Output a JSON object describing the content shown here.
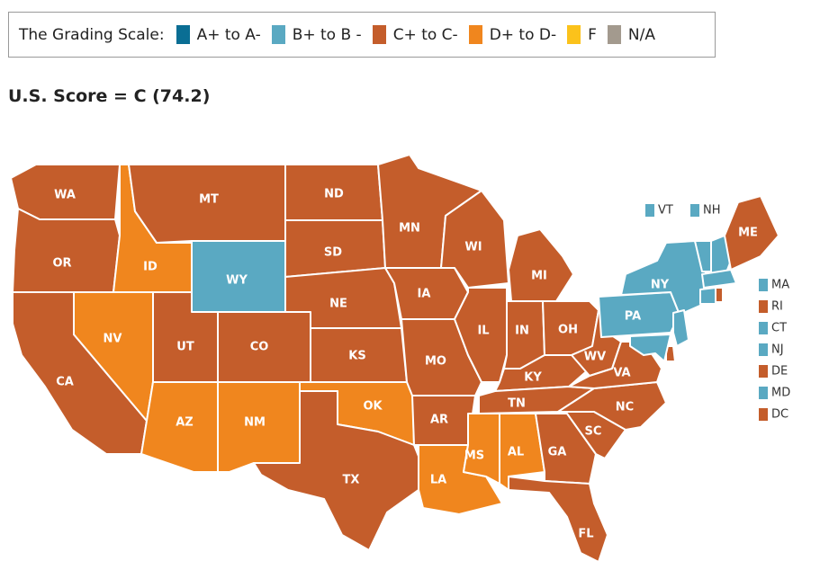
{
  "legend": {
    "title": "The Grading Scale:",
    "items": [
      {
        "label": "A+ to A-",
        "color": "#0a6e94"
      },
      {
        "label": "B+ to B -",
        "color": "#5aa9c2"
      },
      {
        "label": "C+ to C-",
        "color": "#c45d2b"
      },
      {
        "label": "D+ to D-",
        "color": "#f0861e"
      },
      {
        "label": "F",
        "color": "#fbc21b"
      },
      {
        "label": "N/A",
        "color": "#a39a8e"
      }
    ]
  },
  "score": "U.S. Score = C (74.2)",
  "grade_colors": {
    "B": "#5aa9c2",
    "C": "#c45d2b",
    "D": "#f0861e"
  },
  "states": [
    {
      "abbr": "WA",
      "grade": "C"
    },
    {
      "abbr": "OR",
      "grade": "C"
    },
    {
      "abbr": "CA",
      "grade": "C"
    },
    {
      "abbr": "ID",
      "grade": "D"
    },
    {
      "abbr": "NV",
      "grade": "D"
    },
    {
      "abbr": "MT",
      "grade": "C"
    },
    {
      "abbr": "WY",
      "grade": "B"
    },
    {
      "abbr": "UT",
      "grade": "C"
    },
    {
      "abbr": "CO",
      "grade": "C"
    },
    {
      "abbr": "AZ",
      "grade": "D"
    },
    {
      "abbr": "NM",
      "grade": "D"
    },
    {
      "abbr": "ND",
      "grade": "C"
    },
    {
      "abbr": "SD",
      "grade": "C"
    },
    {
      "abbr": "NE",
      "grade": "C"
    },
    {
      "abbr": "KS",
      "grade": "C"
    },
    {
      "abbr": "OK",
      "grade": "D"
    },
    {
      "abbr": "TX",
      "grade": "C"
    },
    {
      "abbr": "MN",
      "grade": "C"
    },
    {
      "abbr": "IA",
      "grade": "C"
    },
    {
      "abbr": "MO",
      "grade": "C"
    },
    {
      "abbr": "AR",
      "grade": "C"
    },
    {
      "abbr": "LA",
      "grade": "D"
    },
    {
      "abbr": "WI",
      "grade": "C"
    },
    {
      "abbr": "IL",
      "grade": "C"
    },
    {
      "abbr": "MS",
      "grade": "D"
    },
    {
      "abbr": "MI",
      "grade": "C"
    },
    {
      "abbr": "IN",
      "grade": "C"
    },
    {
      "abbr": "KY",
      "grade": "C"
    },
    {
      "abbr": "TN",
      "grade": "C"
    },
    {
      "abbr": "AL",
      "grade": "D"
    },
    {
      "abbr": "OH",
      "grade": "C"
    },
    {
      "abbr": "WV",
      "grade": "C"
    },
    {
      "abbr": "GA",
      "grade": "C"
    },
    {
      "abbr": "FL",
      "grade": "C"
    },
    {
      "abbr": "SC",
      "grade": "C"
    },
    {
      "abbr": "NC",
      "grade": "C"
    },
    {
      "abbr": "VA",
      "grade": "C"
    },
    {
      "abbr": "PA",
      "grade": "B"
    },
    {
      "abbr": "NY",
      "grade": "B"
    },
    {
      "abbr": "ME",
      "grade": "C"
    }
  ],
  "small_states_top": [
    {
      "abbr": "VT",
      "grade": "B"
    },
    {
      "abbr": "NH",
      "grade": "B"
    }
  ],
  "small_states_side": [
    {
      "abbr": "MA",
      "grade": "B"
    },
    {
      "abbr": "RI",
      "grade": "C"
    },
    {
      "abbr": "CT",
      "grade": "B"
    },
    {
      "abbr": "NJ",
      "grade": "B"
    },
    {
      "abbr": "DE",
      "grade": "C"
    },
    {
      "abbr": "MD",
      "grade": "B"
    },
    {
      "abbr": "DC",
      "grade": "C"
    }
  ]
}
